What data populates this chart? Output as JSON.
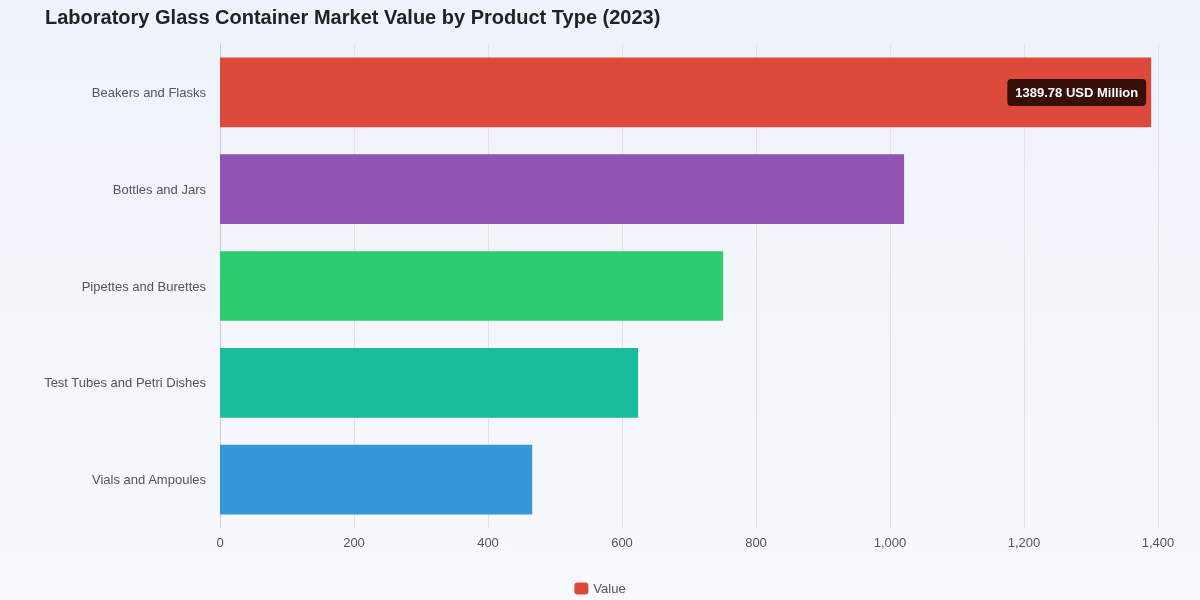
{
  "chart_data": {
    "type": "bar",
    "orientation": "horizontal",
    "title": "Laboratory Glass Container Market Value by Product Type (2023)",
    "categories": [
      "Beakers and Flasks",
      "Bottles and Jars",
      "Pipettes and Burettes",
      "Test Tubes and Petri Dishes",
      "Vials and Ampoules"
    ],
    "series": [
      {
        "name": "Value",
        "color": "#db4a3b",
        "colors": [
          "#db4a3b",
          "#9055b5",
          "#2ecc71",
          "#1abc9c",
          "#3498db"
        ],
        "values": [
          1389.78,
          1021,
          751,
          624,
          466
        ],
        "value_labels": [
          "1389.78 USD Million",
          null,
          null,
          null,
          null
        ]
      }
    ],
    "xlim": [
      0,
      1400
    ],
    "xticks": [
      0,
      200,
      400,
      600,
      800,
      {
        "value": 1000,
        "label": "1,000"
      },
      {
        "value": 1200,
        "label": "1,200"
      },
      {
        "value": 1400,
        "label": "1,400"
      }
    ],
    "grid": "x",
    "legend": "bottom"
  }
}
